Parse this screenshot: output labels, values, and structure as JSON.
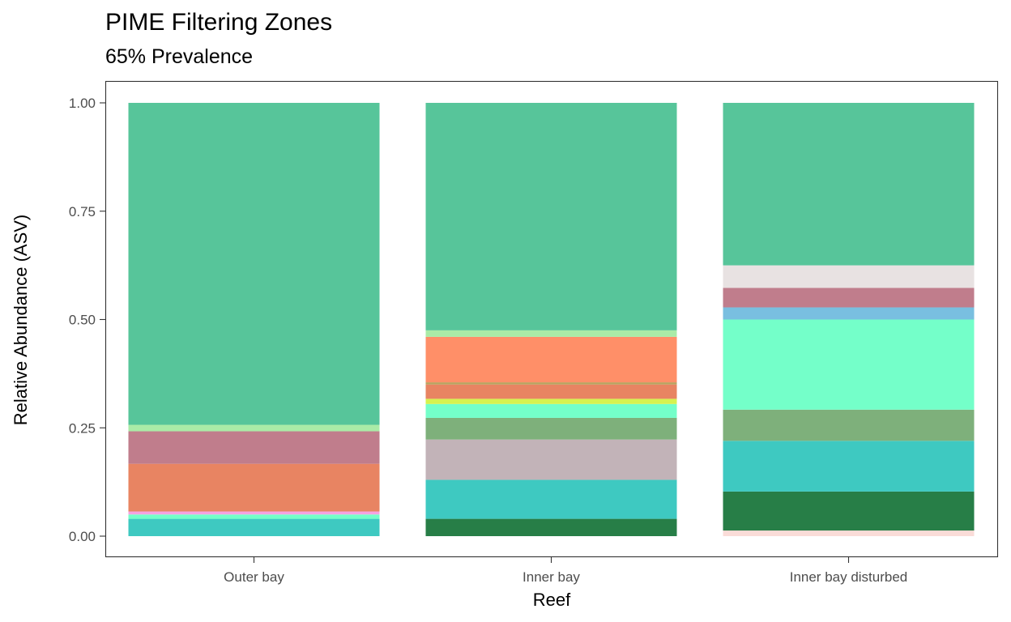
{
  "chart_data": {
    "type": "bar",
    "stacked": true,
    "title": "PIME Filtering Zones",
    "subtitle": "65% Prevalence",
    "xlabel": "Reef",
    "ylabel": "Relative Abundance (ASV)",
    "ylim": [
      0,
      1
    ],
    "yticks": [
      "0.00",
      "0.25",
      "0.50",
      "0.75",
      "1.00"
    ],
    "ytick_values": [
      0,
      0.25,
      0.5,
      0.75,
      1.0
    ],
    "categories": [
      "Outer bay",
      "Inner bay",
      "Inner bay disturbed"
    ],
    "grid": false,
    "legend": "none",
    "bars": [
      {
        "category": "Outer bay",
        "segments": [
          {
            "value": 0.04,
            "color": "#3ec9c1"
          },
          {
            "value": 0.01,
            "color": "#74ffc9"
          },
          {
            "value": 0.007,
            "color": "#f5a3e2"
          },
          {
            "value": 0.11,
            "color": "#e88462"
          },
          {
            "value": 0.075,
            "color": "#c07d8c"
          },
          {
            "value": 0.015,
            "color": "#aaeba7"
          },
          {
            "value": 0.743,
            "color": "#57c59a"
          }
        ]
      },
      {
        "category": "Inner bay",
        "segments": [
          {
            "value": 0.04,
            "color": "#277e47"
          },
          {
            "value": 0.09,
            "color": "#3ec9c1"
          },
          {
            "value": 0.093,
            "color": "#c2b3b8"
          },
          {
            "value": 0.05,
            "color": "#7eb07b"
          },
          {
            "value": 0.032,
            "color": "#74ffc9"
          },
          {
            "value": 0.012,
            "color": "#d6f24f"
          },
          {
            "value": 0.033,
            "color": "#e88462"
          },
          {
            "value": 0.005,
            "color": "#b9a35f"
          },
          {
            "value": 0.105,
            "color": "#ff8f68"
          },
          {
            "value": 0.015,
            "color": "#aaeba7"
          },
          {
            "value": 0.525,
            "color": "#57c59a"
          }
        ]
      },
      {
        "category": "Inner bay disturbed",
        "segments": [
          {
            "value": 0.013,
            "color": "#fadcd8"
          },
          {
            "value": 0.09,
            "color": "#277e47"
          },
          {
            "value": 0.117,
            "color": "#3ec9c1"
          },
          {
            "value": 0.072,
            "color": "#7eb07b"
          },
          {
            "value": 0.208,
            "color": "#74ffc9"
          },
          {
            "value": 0.028,
            "color": "#79bfe0"
          },
          {
            "value": 0.045,
            "color": "#c07d8c"
          },
          {
            "value": 0.052,
            "color": "#e8e2e2"
          },
          {
            "value": 0.375,
            "color": "#57c59a"
          }
        ]
      }
    ]
  }
}
